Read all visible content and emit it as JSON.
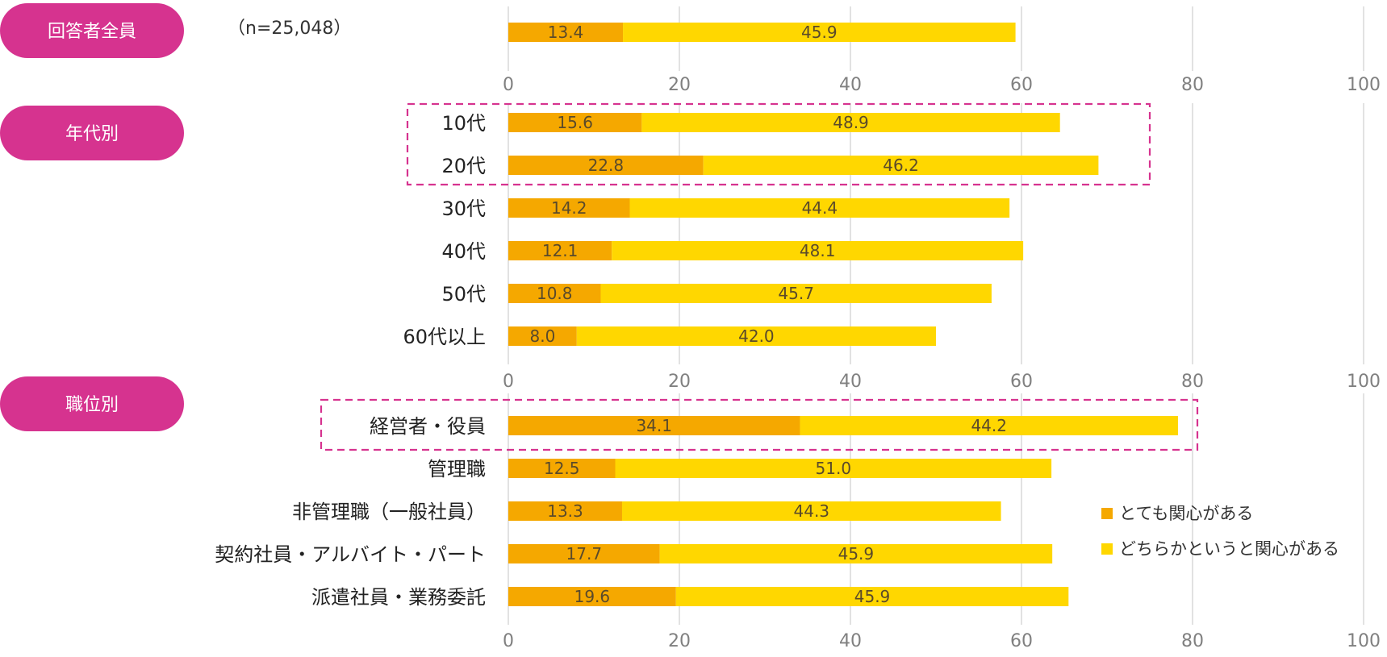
{
  "colors": {
    "pill": "#d6338f",
    "highlight": "#d6338f",
    "grid": "#d9d9d9"
  },
  "chart_data": {
    "type": "bar",
    "orientation": "horizontal",
    "stacked": true,
    "xlim": [
      0,
      100
    ],
    "ticks": [
      "0",
      "20",
      "40",
      "60",
      "80",
      "100"
    ],
    "grid": true,
    "legend_position": "right",
    "legend": [
      {
        "label": "とても関心がある",
        "color": "#f5a800"
      },
      {
        "label": "どちらかというと関心がある",
        "color": "#ffd700"
      }
    ],
    "sample_note": "（n=25,048）",
    "groups": [
      {
        "label": "回答者全員",
        "rows": [
          {
            "label": "",
            "values": [
              13.4,
              45.9
            ]
          }
        ]
      },
      {
        "label": "年代別",
        "rows": [
          {
            "label": "10代",
            "values": [
              15.6,
              48.9
            ]
          },
          {
            "label": "20代",
            "values": [
              22.8,
              46.2
            ]
          },
          {
            "label": "30代",
            "values": [
              14.2,
              44.4
            ]
          },
          {
            "label": "40代",
            "values": [
              12.1,
              48.1
            ]
          },
          {
            "label": "50代",
            "values": [
              10.8,
              45.7
            ]
          },
          {
            "label": "60代以上",
            "values": [
              8.0,
              42.0
            ]
          }
        ]
      },
      {
        "label": "職位別",
        "rows": [
          {
            "label": "経営者・役員",
            "values": [
              34.1,
              44.2
            ]
          },
          {
            "label": "管理職",
            "values": [
              12.5,
              51.0
            ]
          },
          {
            "label": "非管理職（一般社員）",
            "values": [
              13.3,
              44.3
            ]
          },
          {
            "label": "契約社員・アルバイト・パート",
            "values": [
              17.7,
              45.9
            ]
          },
          {
            "label": "派遣社員・業務委託",
            "values": [
              19.6,
              45.9
            ]
          }
        ]
      }
    ],
    "highlighted_rows": [
      "10代",
      "20代",
      "経営者・役員"
    ]
  }
}
